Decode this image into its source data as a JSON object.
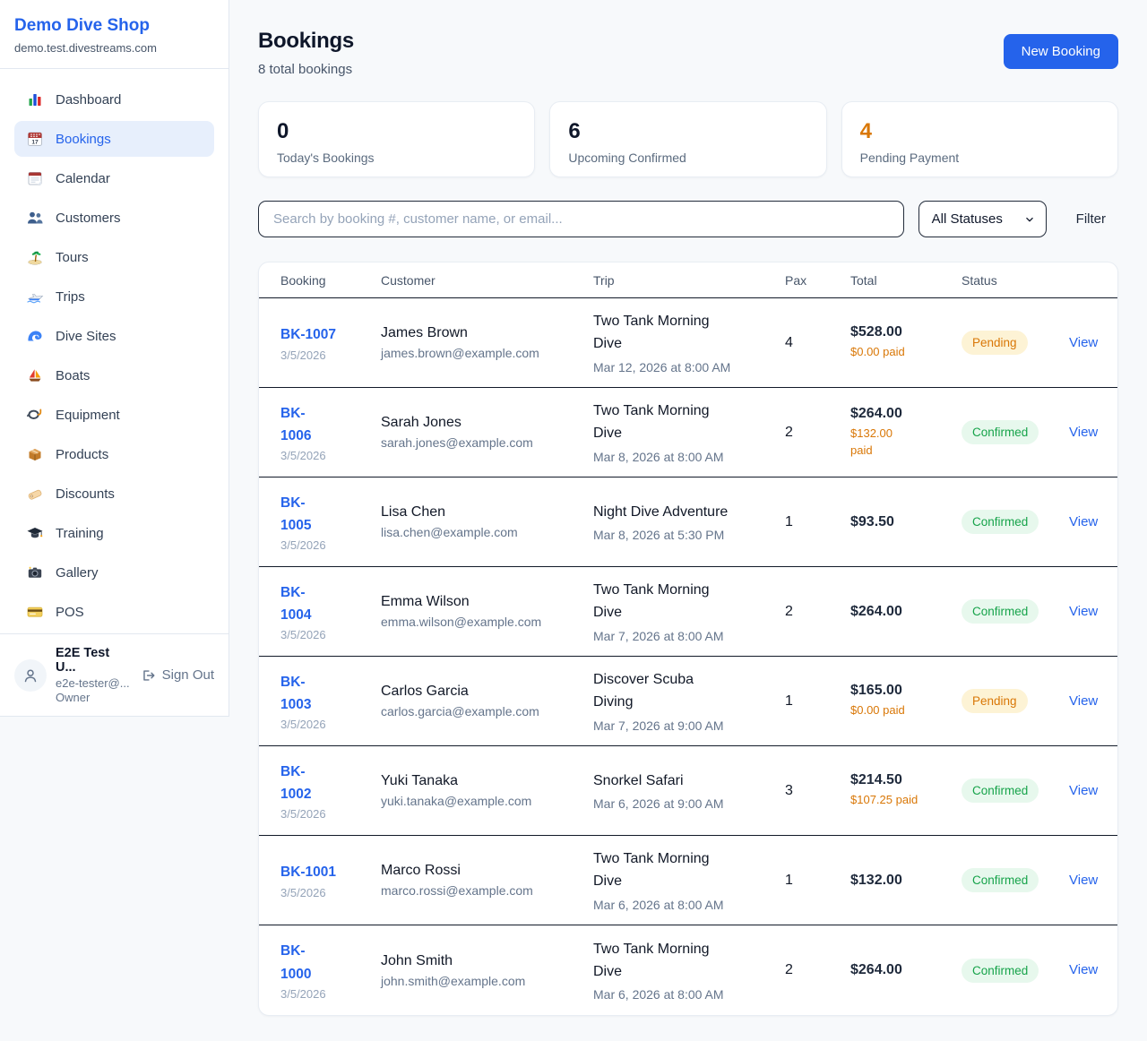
{
  "colors": {
    "brand": "#2563eb",
    "pending_text": "#d97706",
    "confirmed_text": "#16a34a"
  },
  "sidebar": {
    "shop_name": "Demo Dive Shop",
    "domain": "demo.test.divestreams.com",
    "items": [
      {
        "label": "Dashboard",
        "icon": "bar-chart",
        "active": false
      },
      {
        "label": "Bookings",
        "icon": "calendar-17",
        "active": true
      },
      {
        "label": "Calendar",
        "icon": "calendar-pad",
        "active": false
      },
      {
        "label": "Customers",
        "icon": "people",
        "active": false
      },
      {
        "label": "Tours",
        "icon": "island",
        "active": false
      },
      {
        "label": "Trips",
        "icon": "speedboat",
        "active": false
      },
      {
        "label": "Dive Sites",
        "icon": "wave",
        "active": false
      },
      {
        "label": "Boats",
        "icon": "sailboat",
        "active": false
      },
      {
        "label": "Equipment",
        "icon": "dive-mask",
        "active": false
      },
      {
        "label": "Products",
        "icon": "package",
        "active": false
      },
      {
        "label": "Discounts",
        "icon": "tag",
        "active": false
      },
      {
        "label": "Training",
        "icon": "grad-cap",
        "active": false
      },
      {
        "label": "Gallery",
        "icon": "camera",
        "active": false
      },
      {
        "label": "POS",
        "icon": "credit-card",
        "active": false
      }
    ],
    "user": {
      "name": "E2E Test U...",
      "email": "e2e-tester@...",
      "role": "Owner",
      "sign_out_label": "Sign Out"
    }
  },
  "header": {
    "title": "Bookings",
    "subtitle": "8 total bookings",
    "new_booking_label": "New Booking"
  },
  "stats": [
    {
      "value": "0",
      "label": "Today's Bookings",
      "color": "#0f172a"
    },
    {
      "value": "6",
      "label": "Upcoming Confirmed",
      "color": "#0f172a"
    },
    {
      "value": "4",
      "label": "Pending Payment",
      "color": "#d97706"
    }
  ],
  "filters": {
    "search_placeholder": "Search by booking #, customer name, or email...",
    "status_selected": "All Statuses",
    "filter_label": "Filter"
  },
  "table": {
    "columns": [
      "Booking",
      "Customer",
      "Trip",
      "Pax",
      "Total",
      "Status"
    ],
    "action_label": "View",
    "badge_colors": {
      "Pending": {
        "bg": "#fdf3d5",
        "text": "#d97706"
      },
      "Confirmed": {
        "bg": "#e7f8ed",
        "text": "#16a34a"
      }
    },
    "rows": [
      {
        "id_lines": [
          "BK-1007"
        ],
        "date": "3/5/2026",
        "customer": "James Brown",
        "email": "james.brown@example.com",
        "trip_lines": [
          "Two Tank Morning",
          "Dive"
        ],
        "trip_when": "Mar 12, 2026 at 8:00 AM",
        "pax": "4",
        "total": "$528.00",
        "paid_lines": [
          "$0.00 paid"
        ],
        "status": "Pending"
      },
      {
        "id_lines": [
          "BK-",
          "1006"
        ],
        "date": "3/5/2026",
        "customer": "Sarah Jones",
        "email": "sarah.jones@example.com",
        "trip_lines": [
          "Two Tank Morning",
          "Dive"
        ],
        "trip_when": "Mar 8, 2026 at 8:00 AM",
        "pax": "2",
        "total": "$264.00",
        "paid_lines": [
          "$132.00",
          "paid"
        ],
        "status": "Confirmed"
      },
      {
        "id_lines": [
          "BK-",
          "1005"
        ],
        "date": "3/5/2026",
        "customer": "Lisa Chen",
        "email": "lisa.chen@example.com",
        "trip_lines": [
          "Night Dive Adventure"
        ],
        "trip_when": "Mar 8, 2026 at 5:30 PM",
        "pax": "1",
        "total": "$93.50",
        "paid_lines": [],
        "status": "Confirmed"
      },
      {
        "id_lines": [
          "BK-",
          "1004"
        ],
        "date": "3/5/2026",
        "customer": "Emma Wilson",
        "email": "emma.wilson@example.com",
        "trip_lines": [
          "Two Tank Morning",
          "Dive"
        ],
        "trip_when": "Mar 7, 2026 at 8:00 AM",
        "pax": "2",
        "total": "$264.00",
        "paid_lines": [],
        "status": "Confirmed"
      },
      {
        "id_lines": [
          "BK-",
          "1003"
        ],
        "date": "3/5/2026",
        "customer": "Carlos Garcia",
        "email": "carlos.garcia@example.com",
        "trip_lines": [
          "Discover Scuba",
          "Diving"
        ],
        "trip_when": "Mar 7, 2026 at 9:00 AM",
        "pax": "1",
        "total": "$165.00",
        "paid_lines": [
          "$0.00 paid"
        ],
        "status": "Pending"
      },
      {
        "id_lines": [
          "BK-",
          "1002"
        ],
        "date": "3/5/2026",
        "customer": "Yuki Tanaka",
        "email": "yuki.tanaka@example.com",
        "trip_lines": [
          "Snorkel Safari"
        ],
        "trip_when": "Mar 6, 2026 at 9:00 AM",
        "pax": "3",
        "total": "$214.50",
        "paid_lines": [
          "$107.25 paid"
        ],
        "status": "Confirmed"
      },
      {
        "id_lines": [
          "BK-1001"
        ],
        "date": "3/5/2026",
        "customer": "Marco Rossi",
        "email": "marco.rossi@example.com",
        "trip_lines": [
          "Two Tank Morning",
          "Dive"
        ],
        "trip_when": "Mar 6, 2026 at 8:00 AM",
        "pax": "1",
        "total": "$132.00",
        "paid_lines": [],
        "status": "Confirmed"
      },
      {
        "id_lines": [
          "BK-",
          "1000"
        ],
        "date": "3/5/2026",
        "customer": "John Smith",
        "email": "john.smith@example.com",
        "trip_lines": [
          "Two Tank Morning",
          "Dive"
        ],
        "trip_when": "Mar 6, 2026 at 8:00 AM",
        "pax": "2",
        "total": "$264.00",
        "paid_lines": [],
        "status": "Confirmed"
      }
    ]
  }
}
